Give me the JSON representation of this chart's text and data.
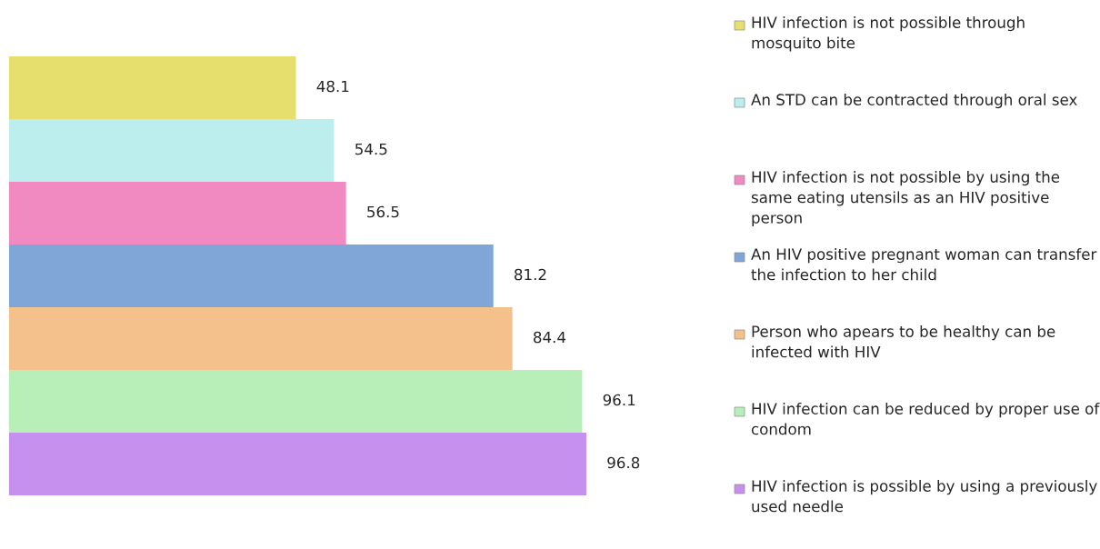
{
  "chart_data": {
    "type": "bar",
    "orientation": "horizontal",
    "categories": [
      null
    ],
    "data_labels": true,
    "legend": "right",
    "grid": false,
    "tick_labels": false,
    "series": [
      {
        "name": "HIV infection is not possible through mosquito bite",
        "color": "#e6df6e",
        "values": [
          48.1
        ]
      },
      {
        "name": "An STD can be contracted through oral sex",
        "color": "#bdeeee",
        "values": [
          54.5
        ]
      },
      {
        "name": "HIV infection is not possible by using the same eating utensils as an HIV positive person",
        "color": "#f08ac0",
        "values": [
          56.5
        ]
      },
      {
        "name": "An HIV positive pregnant woman can transfer the infection to her child",
        "color": "#7fa6d6",
        "values": [
          81.2
        ]
      },
      {
        "name": "Person who apears to be healthy can be infected with HIV",
        "color": "#f4c08c",
        "values": [
          84.4
        ]
      },
      {
        "name": "HIV infection can be reduced by proper use of condom",
        "color": "#b8eeb8",
        "values": [
          96.1
        ]
      },
      {
        "name": "HIV infection is possible by using a previously used needle",
        "color": "#c690ee",
        "values": [
          96.8
        ]
      }
    ]
  }
}
